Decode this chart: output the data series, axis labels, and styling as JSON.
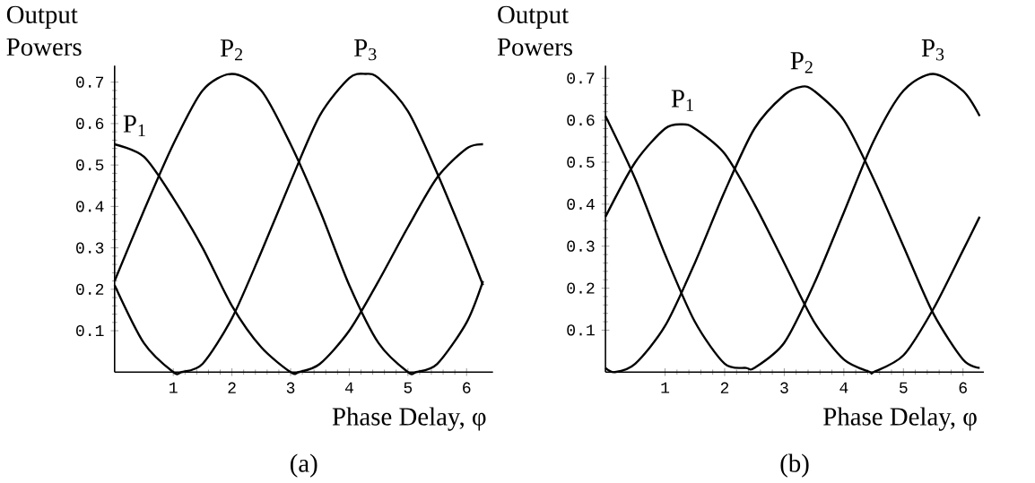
{
  "chart_data": [
    {
      "type": "line",
      "xlabel": "Phase Delay, φ",
      "ylabel": "Output Powers",
      "annotations": [
        "(a)"
      ],
      "xlim": [
        0,
        6.45
      ],
      "ylim": [
        0,
        0.74
      ],
      "xticks": [
        1,
        2,
        3,
        4,
        5,
        6
      ],
      "yticks": [
        0.1,
        0.2,
        0.3,
        0.4,
        0.5,
        0.6,
        0.7
      ],
      "series": [
        {
          "name": "P$_{1}$",
          "color": "#000000",
          "x": [
            0,
            0.5,
            1,
            1.5,
            2,
            2.5,
            3,
            3.14,
            3.5,
            4,
            4.5,
            5,
            5.5,
            6,
            6.28
          ],
          "values": [
            0.55,
            0.52,
            0.42,
            0.3,
            0.16,
            0.06,
            0.0,
            0.0,
            0.02,
            0.1,
            0.22,
            0.35,
            0.47,
            0.54,
            0.55
          ]
        },
        {
          "name": "P$_{2}$",
          "color": "#000000",
          "x": [
            0,
            0.5,
            1,
            1.5,
            2,
            2.5,
            3,
            3.5,
            4,
            4.5,
            5,
            5.14,
            5.5,
            6,
            6.28
          ],
          "values": [
            0.22,
            0.39,
            0.55,
            0.68,
            0.72,
            0.68,
            0.55,
            0.39,
            0.21,
            0.07,
            0.0,
            0.0,
            0.02,
            0.12,
            0.22
          ]
        },
        {
          "name": "P$_{3}$",
          "color": "#000000",
          "x": [
            0,
            0.5,
            1,
            1.14,
            1.5,
            2,
            2.5,
            3,
            3.5,
            4,
            4.28,
            4.5,
            5,
            5.5,
            6,
            6.28
          ],
          "values": [
            0.21,
            0.07,
            0.0,
            0.0,
            0.02,
            0.13,
            0.29,
            0.46,
            0.62,
            0.71,
            0.72,
            0.71,
            0.63,
            0.48,
            0.31,
            0.21
          ]
        }
      ]
    },
    {
      "type": "line",
      "xlabel": "Phase Delay, φ",
      "ylabel": "Output Powers",
      "annotations": [
        "(b)"
      ],
      "xlim": [
        0,
        6.35
      ],
      "ylim": [
        0,
        0.73
      ],
      "xticks": [
        1,
        2,
        3,
        4,
        5,
        6
      ],
      "yticks": [
        0.1,
        0.2,
        0.3,
        0.4,
        0.5,
        0.6,
        0.7
      ],
      "series": [
        {
          "name": "P$_{1}$",
          "color": "#000000",
          "x": [
            0,
            0.5,
            1,
            1.3,
            1.5,
            2,
            2.5,
            3,
            3.5,
            4,
            4.44,
            4.5,
            5,
            5.5,
            6,
            6.28
          ],
          "values": [
            0.37,
            0.5,
            0.58,
            0.59,
            0.58,
            0.52,
            0.4,
            0.26,
            0.12,
            0.03,
            0.0,
            0.0,
            0.04,
            0.15,
            0.29,
            0.37
          ]
        },
        {
          "name": "P$_{2}$",
          "color": "#000000",
          "x": [
            0,
            0.16,
            0.5,
            1,
            1.5,
            2,
            2.5,
            3,
            3.3,
            3.5,
            4,
            4.5,
            5,
            5.5,
            6,
            6.28
          ],
          "values": [
            0.01,
            0.0,
            0.02,
            0.11,
            0.26,
            0.43,
            0.58,
            0.66,
            0.68,
            0.67,
            0.6,
            0.46,
            0.3,
            0.14,
            0.03,
            0.01
          ]
        },
        {
          "name": "P$_{3}$",
          "color": "#000000",
          "x": [
            0,
            0.5,
            1,
            1.5,
            2,
            2.36,
            2.5,
            3,
            3.5,
            4,
            4.5,
            5,
            5.5,
            6,
            6.28
          ],
          "values": [
            0.61,
            0.46,
            0.28,
            0.12,
            0.02,
            0.01,
            0.01,
            0.07,
            0.21,
            0.38,
            0.55,
            0.67,
            0.71,
            0.67,
            0.61
          ]
        }
      ]
    }
  ]
}
